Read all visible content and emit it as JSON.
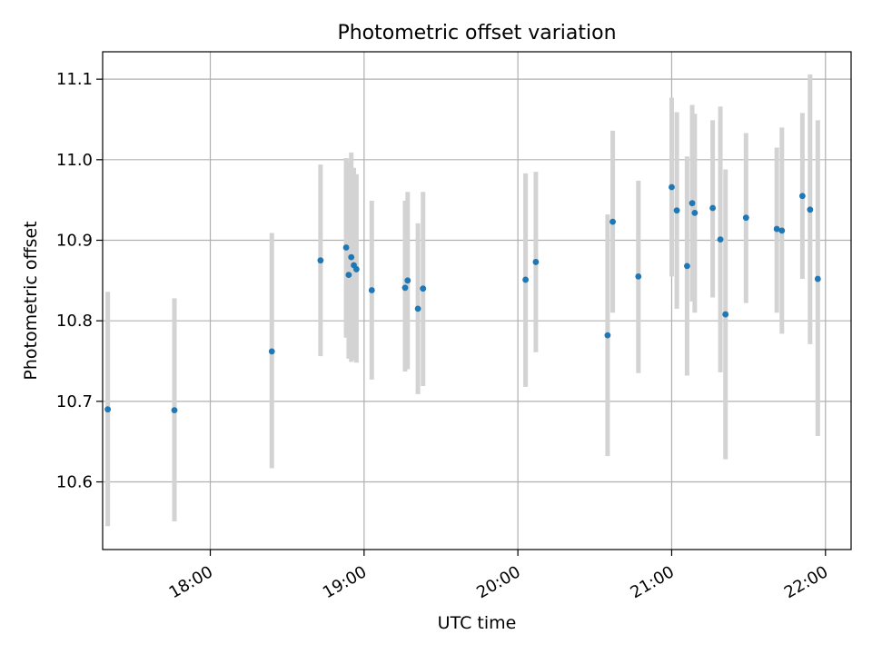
{
  "chart_data": {
    "type": "scatter",
    "title": "Photometric offset variation",
    "xlabel": "UTC time",
    "ylabel": "Photometric offset",
    "grid": true,
    "xlim": [
      "17:18",
      "22:10"
    ],
    "ylim": [
      10.516,
      11.134
    ],
    "xticks": [
      "18:00",
      "19:00",
      "20:00",
      "21:00",
      "22:00"
    ],
    "yticks": [
      "10.6",
      "10.7",
      "10.8",
      "10.9",
      "11.0",
      "11.1"
    ],
    "colors": {
      "point": "#1f77b4",
      "errorbar": "#d3d3d3",
      "grid": "#b0b0b0"
    },
    "points": [
      {
        "t": "17:20",
        "y": 10.69,
        "lo": 10.545,
        "hi": 10.836
      },
      {
        "t": "17:46",
        "y": 10.689,
        "lo": 10.551,
        "hi": 10.828
      },
      {
        "t": "18:24",
        "y": 10.762,
        "lo": 10.617,
        "hi": 10.909
      },
      {
        "t": "18:43",
        "y": 10.875,
        "lo": 10.756,
        "hi": 10.994
      },
      {
        "t": "18:53",
        "y": 10.891,
        "lo": 10.779,
        "hi": 11.002
      },
      {
        "t": "18:54",
        "y": 10.857,
        "lo": 10.753,
        "hi": 10.998
      },
      {
        "t": "18:55",
        "y": 10.879,
        "lo": 10.749,
        "hi": 11.009
      },
      {
        "t": "18:56",
        "y": 10.869,
        "lo": 10.751,
        "hi": 10.99
      },
      {
        "t": "18:57",
        "y": 10.864,
        "lo": 10.748,
        "hi": 10.982
      },
      {
        "t": "19:03",
        "y": 10.838,
        "lo": 10.727,
        "hi": 10.949
      },
      {
        "t": "19:16",
        "y": 10.841,
        "lo": 10.737,
        "hi": 10.949
      },
      {
        "t": "19:17",
        "y": 10.85,
        "lo": 10.74,
        "hi": 10.96
      },
      {
        "t": "19:21",
        "y": 10.815,
        "lo": 10.709,
        "hi": 10.921
      },
      {
        "t": "19:23",
        "y": 10.84,
        "lo": 10.719,
        "hi": 10.96
      },
      {
        "t": "20:03",
        "y": 10.851,
        "lo": 10.718,
        "hi": 10.983
      },
      {
        "t": "20:07",
        "y": 10.873,
        "lo": 10.761,
        "hi": 10.985
      },
      {
        "t": "20:35",
        "y": 10.782,
        "lo": 10.632,
        "hi": 10.932
      },
      {
        "t": "20:37",
        "y": 10.923,
        "lo": 10.81,
        "hi": 11.036
      },
      {
        "t": "20:47",
        "y": 10.855,
        "lo": 10.735,
        "hi": 10.974
      },
      {
        "t": "21:00",
        "y": 10.966,
        "lo": 10.855,
        "hi": 11.077
      },
      {
        "t": "21:02",
        "y": 10.937,
        "lo": 10.815,
        "hi": 11.059
      },
      {
        "t": "21:06",
        "y": 10.868,
        "lo": 10.732,
        "hi": 11.004
      },
      {
        "t": "21:08",
        "y": 10.946,
        "lo": 10.824,
        "hi": 11.068
      },
      {
        "t": "21:09",
        "y": 10.934,
        "lo": 10.81,
        "hi": 11.057
      },
      {
        "t": "21:16",
        "y": 10.94,
        "lo": 10.829,
        "hi": 11.049
      },
      {
        "t": "21:19",
        "y": 10.901,
        "lo": 10.736,
        "hi": 11.066
      },
      {
        "t": "21:21",
        "y": 10.808,
        "lo": 10.628,
        "hi": 10.988
      },
      {
        "t": "21:29",
        "y": 10.928,
        "lo": 10.822,
        "hi": 11.033
      },
      {
        "t": "21:41",
        "y": 10.914,
        "lo": 10.81,
        "hi": 11.015
      },
      {
        "t": "21:43",
        "y": 10.912,
        "lo": 10.784,
        "hi": 11.04
      },
      {
        "t": "21:51",
        "y": 10.955,
        "lo": 10.852,
        "hi": 11.058
      },
      {
        "t": "21:54",
        "y": 10.938,
        "lo": 10.771,
        "hi": 11.106
      },
      {
        "t": "21:57",
        "y": 10.852,
        "lo": 10.657,
        "hi": 11.049
      }
    ]
  }
}
